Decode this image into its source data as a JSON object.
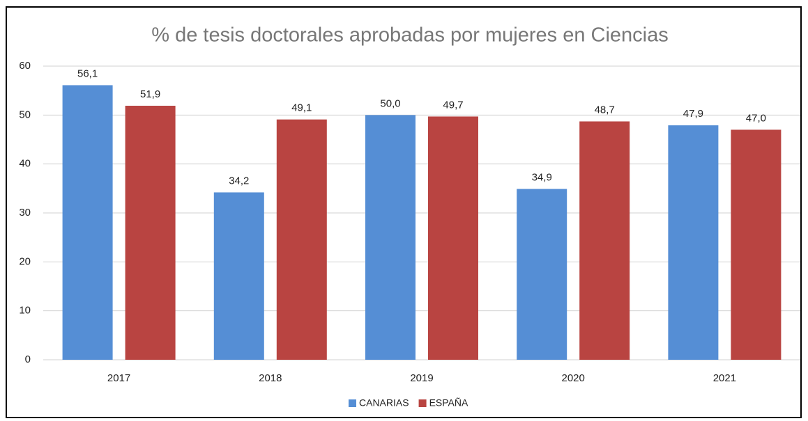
{
  "chart_data": {
    "type": "bar",
    "title": "% de tesis doctorales aprobadas por mujeres en Ciencias",
    "categories": [
      "2017",
      "2018",
      "2019",
      "2020",
      "2021"
    ],
    "series": [
      {
        "name": "CANARIAS",
        "color": "#558ed5",
        "values": [
          56.1,
          34.2,
          50.0,
          34.9,
          47.9
        ],
        "value_labels": [
          "56,1",
          "34,2",
          "50,0",
          "34,9",
          "47,9"
        ]
      },
      {
        "name": "ESPAÑA",
        "color": "#b94441",
        "values": [
          51.9,
          49.1,
          49.7,
          48.7,
          47.0
        ],
        "value_labels": [
          "51,9",
          "49,1",
          "49,7",
          "48,7",
          "47,0"
        ]
      }
    ],
    "ylim": [
      0,
      60
    ],
    "yticks": [
      0,
      10,
      20,
      30,
      40,
      50,
      60
    ],
    "grid": true,
    "legend": "bottom"
  }
}
